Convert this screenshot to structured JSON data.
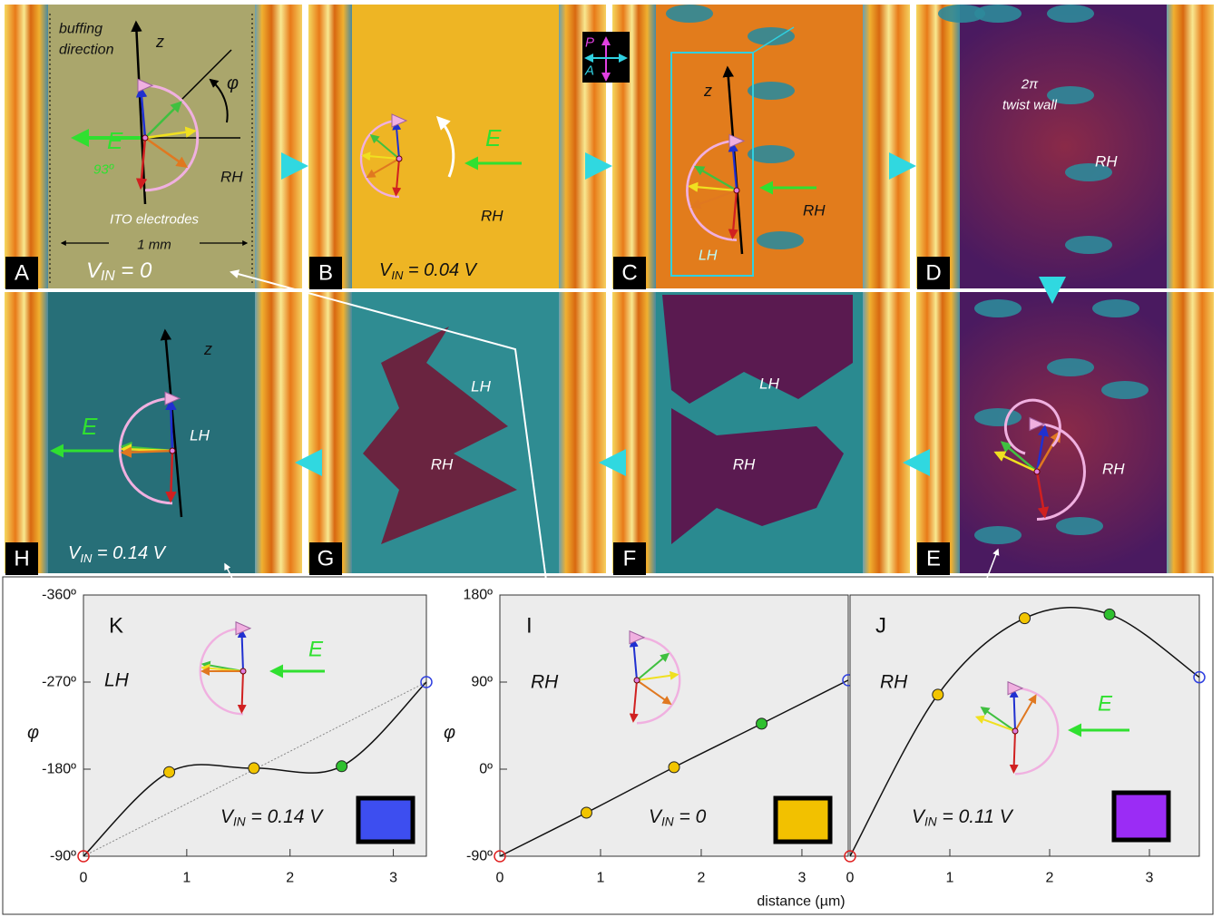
{
  "panels": [
    {
      "label": "A",
      "texts": [
        "buffing",
        "direction",
        "z",
        "φ",
        "E",
        "93º",
        "RH",
        "ITO electrodes",
        "1 mm"
      ],
      "voltage": {
        "main": "V",
        "sub": "IN",
        "rest": " = 0"
      }
    },
    {
      "label": "B",
      "texts": [
        "E",
        "RH"
      ],
      "voltage": {
        "main": "V",
        "sub": "IN",
        "rest": " = 0.04 V"
      }
    },
    {
      "label": "C",
      "texts": [
        "P",
        "A",
        "z",
        "RH",
        "LH"
      ]
    },
    {
      "label": "D",
      "texts": [
        "2π",
        "twist wall",
        "RH"
      ]
    },
    {
      "label": "E",
      "texts": [
        "RH"
      ]
    },
    {
      "label": "F",
      "texts": [
        "LH",
        "RH"
      ]
    },
    {
      "label": "G",
      "texts": [
        "LH",
        "RH"
      ]
    },
    {
      "label": "H",
      "texts": [
        "z",
        "E",
        "LH"
      ],
      "voltage": {
        "main": "V",
        "sub": "IN",
        "rest": " = 0.14 V"
      }
    }
  ],
  "chart_data": [
    {
      "type": "line",
      "label": "K",
      "handedness": "LH",
      "inset_text": "E",
      "annotation": {
        "main": "V",
        "sub": "IN",
        "rest": " = 0.14 V"
      },
      "swatch_color": "#3d4ef0",
      "x": [
        0,
        0.83,
        1.65,
        2.5,
        3.32
      ],
      "values": [
        -90,
        -177,
        -181,
        -183,
        -270
      ],
      "color": "#111111",
      "markers": [
        {
          "color": "#e02020",
          "open": true
        },
        {
          "color": "#f2c500",
          "open": false
        },
        {
          "color": "#f2c500",
          "open": false
        },
        {
          "color": "#2fc02f",
          "open": false
        },
        {
          "color": "#3040e0",
          "open": true
        }
      ],
      "reference_line": true,
      "xlim": [
        0,
        3.32
      ],
      "ylim": [
        -90,
        -360
      ],
      "xticks": [
        0,
        1,
        2,
        3
      ],
      "yticks": [
        {
          "value": -360,
          "label": "-360º"
        },
        {
          "value": -270,
          "label": "-270º"
        },
        {
          "value": -180,
          "label": "-180º"
        },
        {
          "value": -90,
          "label": "-90º"
        }
      ],
      "ylabel": "φ"
    },
    {
      "type": "line",
      "label": "I",
      "handedness": "RH",
      "annotation": {
        "main": "V",
        "sub": "IN",
        "rest": " = 0"
      },
      "swatch_color": "#f2c100",
      "x": [
        0,
        0.86,
        1.73,
        2.6,
        3.46
      ],
      "values": [
        -90,
        -45,
        2,
        47,
        92
      ],
      "color": "#111111",
      "markers": [
        {
          "color": "#e02020",
          "open": true
        },
        {
          "color": "#f2c500",
          "open": false
        },
        {
          "color": "#f2c500",
          "open": false
        },
        {
          "color": "#2fc02f",
          "open": false
        },
        {
          "color": "#3040e0",
          "open": true
        }
      ],
      "xlim": [
        0,
        3.46
      ],
      "ylim": [
        -90,
        180
      ],
      "xticks": [
        0,
        1,
        2,
        3
      ],
      "yticks": [
        {
          "value": -90,
          "label": "-90º"
        },
        {
          "value": 0,
          "label": "0º"
        },
        {
          "value": 90,
          "label": "90º"
        },
        {
          "value": 180,
          "label": "180º"
        }
      ],
      "ylabel": "φ",
      "xlabel": "distance (µm)"
    },
    {
      "type": "line",
      "label": "J",
      "handedness": "RH",
      "inset_text": "E",
      "annotation": {
        "main": "V",
        "sub": "IN",
        "rest": " = 0.11 V"
      },
      "swatch_color": "#9b2cf5",
      "x": [
        0,
        0.88,
        1.75,
        2.6,
        3.5
      ],
      "values": [
        -90,
        77,
        156,
        160,
        95
      ],
      "color": "#111111",
      "markers": [
        {
          "color": "#e02020",
          "open": true
        },
        {
          "color": "#f2c500",
          "open": false
        },
        {
          "color": "#f2c500",
          "open": false
        },
        {
          "color": "#2fc02f",
          "open": false
        },
        {
          "color": "#3040e0",
          "open": true
        }
      ],
      "xlim": [
        0,
        3.5
      ],
      "ylim": [
        -90,
        180
      ],
      "xticks": [
        0,
        1,
        2,
        3
      ]
    }
  ]
}
